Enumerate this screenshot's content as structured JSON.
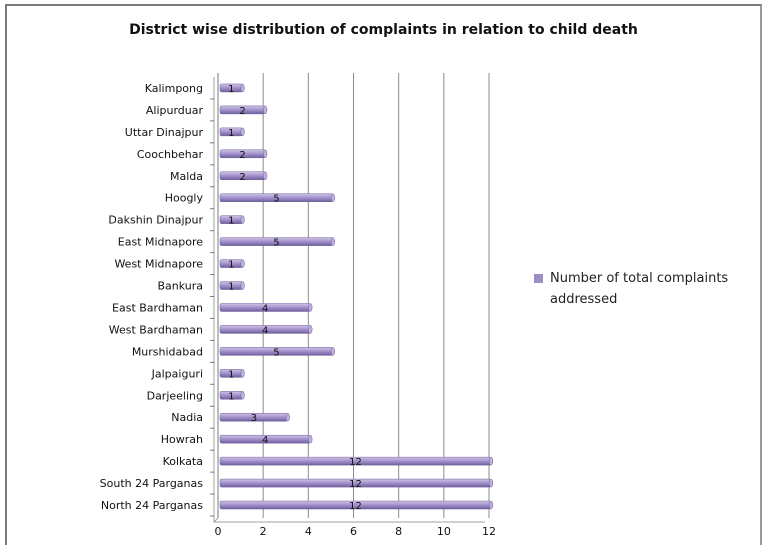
{
  "chart_data": {
    "type": "bar",
    "orientation": "horizontal",
    "title": "District wise distribution of complaints in relation to child death",
    "xlabel": "",
    "ylabel": "",
    "categories": [
      "North 24 Parganas",
      "South 24 Parganas",
      "Kolkata",
      "Howrah",
      "Nadia",
      "Darjeeling",
      "Jalpaiguri",
      "Murshidabad",
      "West Bardhaman",
      "East  Bardhaman",
      "Bankura",
      "West Midnapore",
      "East Midnapore",
      "Dakshin Dinajpur",
      "Hoogly",
      "Malda",
      "Coochbehar",
      "Uttar Dinajpur",
      "Alipurduar",
      "Kalimpong"
    ],
    "series": [
      {
        "name": "Number of total complaints addressed",
        "values": [
          12,
          12,
          12,
          4,
          3,
          1,
          1,
          5,
          4,
          4,
          1,
          1,
          5,
          1,
          5,
          2,
          2,
          1,
          2,
          1
        ]
      }
    ],
    "xlim": [
      0,
      12
    ],
    "xticks": [
      0,
      2,
      4,
      6,
      8,
      10,
      12
    ],
    "grid": "vertical",
    "legend": "right",
    "colors": {
      "bar": "#9d8dc4",
      "bar_light": "#cfc4e6",
      "bar_dark": "#6f5f9c",
      "grid": "#8c8c8c"
    }
  }
}
